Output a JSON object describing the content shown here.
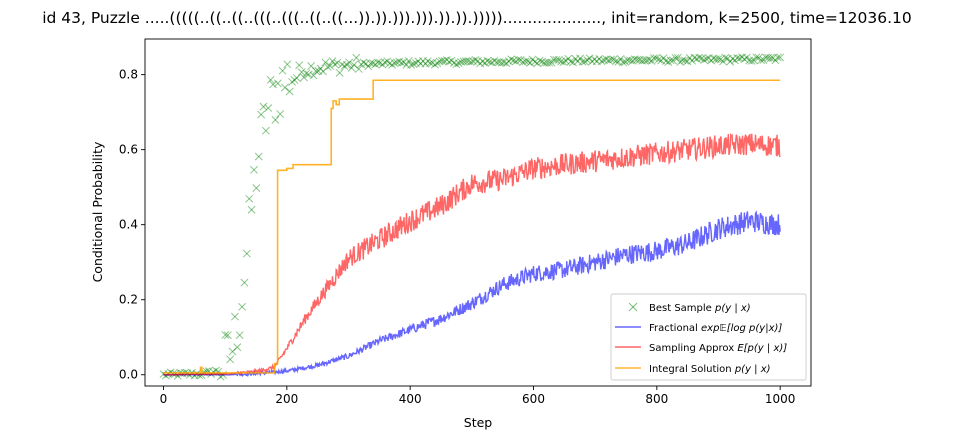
{
  "chart_data": {
    "type": "line",
    "title": "id 43, Puzzle .....(((((..((..((..(((..(((..((..((...)).)).))).))).)).)).)))))...................., init=random, k=2500, time=12036.10",
    "xlabel": "Step",
    "ylabel": "Conditional Probability",
    "xlim": [
      -30,
      1050
    ],
    "ylim": [
      -0.03,
      0.895
    ],
    "xticks": [
      0,
      200,
      400,
      600,
      800,
      1000
    ],
    "yticks": [
      0.0,
      0.2,
      0.4,
      0.6,
      0.8
    ],
    "xtick_labels": [
      "0",
      "200",
      "400",
      "600",
      "800",
      "1000"
    ],
    "ytick_labels": [
      "0.0",
      "0.2",
      "0.4",
      "0.6",
      "0.8"
    ],
    "grid": false,
    "legend_position": "lower-right",
    "series": [
      {
        "name": "Best Sample p(y | x)",
        "kind": "scatter",
        "marker": "x",
        "color": "#008000",
        "anchors": {
          "x": [
            0,
            60,
            90,
            105,
            115,
            125,
            135,
            145,
            155,
            165,
            175,
            185,
            195,
            205,
            215,
            225,
            235,
            245,
            260,
            280,
            300,
            330,
            370,
            420,
            500,
            600,
            700,
            800,
            900,
            1000
          ],
          "y": [
            0.0,
            0.002,
            0.01,
            0.04,
            0.09,
            0.18,
            0.32,
            0.48,
            0.6,
            0.68,
            0.73,
            0.76,
            0.78,
            0.8,
            0.805,
            0.81,
            0.815,
            0.818,
            0.82,
            0.823,
            0.826,
            0.828,
            0.83,
            0.832,
            0.834,
            0.836,
            0.838,
            0.839,
            0.84,
            0.842
          ]
        }
      },
      {
        "name": "Fractional exp E[log p(y|x)]",
        "kind": "line",
        "color": "#0000ff",
        "anchors": {
          "x": [
            0,
            100,
            150,
            200,
            250,
            300,
            350,
            400,
            450,
            500,
            550,
            600,
            650,
            700,
            750,
            800,
            850,
            900,
            950,
            1000
          ],
          "y": [
            0.0,
            0.0,
            0.003,
            0.01,
            0.025,
            0.05,
            0.09,
            0.12,
            0.15,
            0.19,
            0.24,
            0.27,
            0.28,
            0.3,
            0.32,
            0.33,
            0.35,
            0.39,
            0.41,
            0.4
          ]
        }
      },
      {
        "name": "Sampling Approx E[p(y | x)]",
        "kind": "line",
        "color": "#ff0000",
        "anchors": {
          "x": [
            0,
            100,
            150,
            180,
            200,
            230,
            260,
            300,
            350,
            400,
            450,
            500,
            550,
            600,
            650,
            700,
            750,
            800,
            850,
            900,
            950,
            1000
          ],
          "y": [
            0.0,
            0.002,
            0.008,
            0.02,
            0.07,
            0.15,
            0.22,
            0.31,
            0.36,
            0.41,
            0.45,
            0.51,
            0.52,
            0.55,
            0.56,
            0.57,
            0.58,
            0.59,
            0.6,
            0.61,
            0.615,
            0.61
          ]
        }
      },
      {
        "name": "Integral Solution p(y | x)",
        "kind": "step",
        "color": "#ffa500",
        "x": [
          0,
          58,
          60,
          62,
          100,
          180,
          185,
          200,
          210,
          268,
          272,
          275,
          280,
          285,
          335,
          340,
          1000
        ],
        "y": [
          0.005,
          0.005,
          0.02,
          0.005,
          0.005,
          0.03,
          0.545,
          0.55,
          0.56,
          0.56,
          0.71,
          0.73,
          0.72,
          0.735,
          0.735,
          0.785,
          0.785
        ]
      }
    ]
  },
  "legend": {
    "items": [
      {
        "prefix": "Best Sample ",
        "math": "p(y | x)"
      },
      {
        "prefix": "Fractional ",
        "math": "exp𝔼[log p(y|x)]"
      },
      {
        "prefix": "Sampling Approx ",
        "math": "E[p(y | x)]"
      },
      {
        "prefix": "Integral Solution ",
        "math": "p(y | x)"
      }
    ]
  }
}
